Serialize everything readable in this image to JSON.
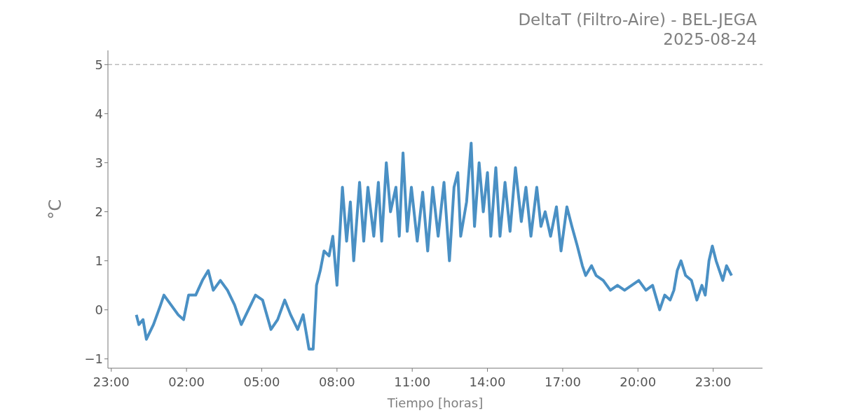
{
  "chart_data": {
    "type": "line",
    "title": "DeltaT (Filtro-Aire) - BEL-JEGA",
    "subtitle": "2025-08-24",
    "xlabel": "Tiempo [horas]",
    "ylabel": "°C",
    "xlim": [
      "2025-08-23T22:52",
      "2025-08-25T00:58"
    ],
    "xticks": [
      {
        "value": "2025-08-23T23:00",
        "label": "23:00"
      },
      {
        "value": "2025-08-24T02:00",
        "label": "02:00"
      },
      {
        "value": "2025-08-24T05:00",
        "label": "05:00"
      },
      {
        "value": "2025-08-24T08:00",
        "label": "08:00"
      },
      {
        "value": "2025-08-24T11:00",
        "label": "11:00"
      },
      {
        "value": "2025-08-24T14:00",
        "label": "14:00"
      },
      {
        "value": "2025-08-24T17:00",
        "label": "17:00"
      },
      {
        "value": "2025-08-24T20:00",
        "label": "20:00"
      },
      {
        "value": "2025-08-24T23:00",
        "label": "23:00"
      }
    ],
    "ylim": [
      -1.19,
      5.29
    ],
    "yticks": [
      {
        "value": -1,
        "label": "−1"
      },
      0,
      1,
      2,
      3,
      4,
      5
    ],
    "grid": false,
    "legend": false,
    "marker": "none",
    "line_style": "solid",
    "ref_lines": [
      {
        "axis": "y",
        "value": 5,
        "color": "#bbbbbb",
        "line_style": "dashed"
      }
    ],
    "series": [
      {
        "color": "#4a90c4",
        "x": [
          "2025-08-24T00:00",
          "2025-08-24T00:06",
          "2025-08-24T00:16",
          "2025-08-24T00:24",
          "2025-08-24T00:41",
          "2025-08-24T00:58",
          "2025-08-24T01:06",
          "2025-08-24T01:23",
          "2025-08-24T01:40",
          "2025-08-24T01:53",
          "2025-08-24T02:05",
          "2025-08-24T02:22",
          "2025-08-24T02:38",
          "2025-08-24T02:52",
          "2025-08-24T03:04",
          "2025-08-24T03:21",
          "2025-08-24T03:38",
          "2025-08-24T03:55",
          "2025-08-24T04:11",
          "2025-08-24T04:28",
          "2025-08-24T04:45",
          "2025-08-24T05:02",
          "2025-08-24T05:22",
          "2025-08-24T05:38",
          "2025-08-24T05:55",
          "2025-08-24T06:09",
          "2025-08-24T06:26",
          "2025-08-24T06:39",
          "2025-08-24T06:53",
          "2025-08-24T07:03",
          "2025-08-24T07:11",
          "2025-08-24T07:20",
          "2025-08-24T07:29",
          "2025-08-24T07:41",
          "2025-08-24T07:50",
          "2025-08-24T08:00",
          "2025-08-24T08:13",
          "2025-08-24T08:23",
          "2025-08-24T08:32",
          "2025-08-24T08:40",
          "2025-08-24T08:54",
          "2025-08-24T09:04",
          "2025-08-24T09:14",
          "2025-08-24T09:28",
          "2025-08-24T09:39",
          "2025-08-24T09:47",
          "2025-08-24T09:58",
          "2025-08-24T10:08",
          "2025-08-24T10:21",
          "2025-08-24T10:29",
          "2025-08-24T10:38",
          "2025-08-24T10:48",
          "2025-08-24T10:58",
          "2025-08-24T11:12",
          "2025-08-24T11:25",
          "2025-08-24T11:37",
          "2025-08-24T11:49",
          "2025-08-24T12:02",
          "2025-08-24T12:16",
          "2025-08-24T12:29",
          "2025-08-24T12:40",
          "2025-08-24T12:49",
          "2025-08-24T12:56",
          "2025-08-24T13:10",
          "2025-08-24T13:21",
          "2025-08-24T13:29",
          "2025-08-24T13:40",
          "2025-08-24T13:50",
          "2025-08-24T14:00",
          "2025-08-24T14:08",
          "2025-08-24T14:20",
          "2025-08-24T14:30",
          "2025-08-24T14:42",
          "2025-08-24T14:54",
          "2025-08-24T15:07",
          "2025-08-24T15:21",
          "2025-08-24T15:32",
          "2025-08-24T15:44",
          "2025-08-24T15:58",
          "2025-08-24T16:08",
          "2025-08-24T16:18",
          "2025-08-24T16:31",
          "2025-08-24T16:45",
          "2025-08-24T16:56",
          "2025-08-24T17:10",
          "2025-08-24T17:22",
          "2025-08-24T17:35",
          "2025-08-24T17:47",
          "2025-08-24T17:55",
          "2025-08-24T18:09",
          "2025-08-24T18:20",
          "2025-08-24T18:37",
          "2025-08-24T18:54",
          "2025-08-24T19:11",
          "2025-08-24T19:28",
          "2025-08-24T19:45",
          "2025-08-24T20:02",
          "2025-08-24T20:19",
          "2025-08-24T20:35",
          "2025-08-24T20:52",
          "2025-08-24T21:04",
          "2025-08-24T21:17",
          "2025-08-24T21:26",
          "2025-08-24T21:34",
          "2025-08-24T21:43",
          "2025-08-24T21:54",
          "2025-08-24T22:08",
          "2025-08-24T22:21",
          "2025-08-24T22:33",
          "2025-08-24T22:41",
          "2025-08-24T22:50",
          "2025-08-24T22:58",
          "2025-08-24T23:07",
          "2025-08-24T23:15",
          "2025-08-24T23:23",
          "2025-08-24T23:32",
          "2025-08-24T23:44"
        ],
        "values": [
          -0.1,
          -0.3,
          -0.2,
          -0.6,
          -0.3,
          0.1,
          0.3,
          0.1,
          -0.1,
          -0.2,
          0.3,
          0.3,
          0.6,
          0.8,
          0.4,
          0.6,
          0.4,
          0.1,
          -0.3,
          0.0,
          0.3,
          0.2,
          -0.4,
          -0.2,
          0.2,
          -0.1,
          -0.4,
          -0.1,
          -0.8,
          -0.8,
          0.5,
          0.8,
          1.2,
          1.1,
          1.5,
          0.5,
          2.5,
          1.4,
          2.2,
          1.0,
          2.6,
          1.4,
          2.5,
          1.5,
          2.6,
          1.4,
          3.0,
          2.0,
          2.5,
          1.5,
          3.2,
          1.6,
          2.5,
          1.4,
          2.4,
          1.2,
          2.5,
          1.5,
          2.6,
          1.0,
          2.5,
          2.8,
          1.5,
          2.2,
          3.4,
          1.7,
          3.0,
          2.0,
          2.8,
          1.5,
          2.9,
          1.5,
          2.6,
          1.6,
          2.9,
          1.8,
          2.5,
          1.5,
          2.5,
          1.7,
          2.0,
          1.5,
          2.1,
          1.2,
          2.1,
          1.7,
          1.3,
          0.9,
          0.7,
          0.9,
          0.7,
          0.6,
          0.4,
          0.5,
          0.4,
          0.5,
          0.6,
          0.4,
          0.5,
          0.0,
          0.3,
          0.2,
          0.4,
          0.8,
          1.0,
          0.7,
          0.6,
          0.2,
          0.5,
          0.3,
          1.0,
          1.3,
          1.0,
          0.8,
          0.6,
          0.9,
          0.7
        ]
      }
    ]
  }
}
